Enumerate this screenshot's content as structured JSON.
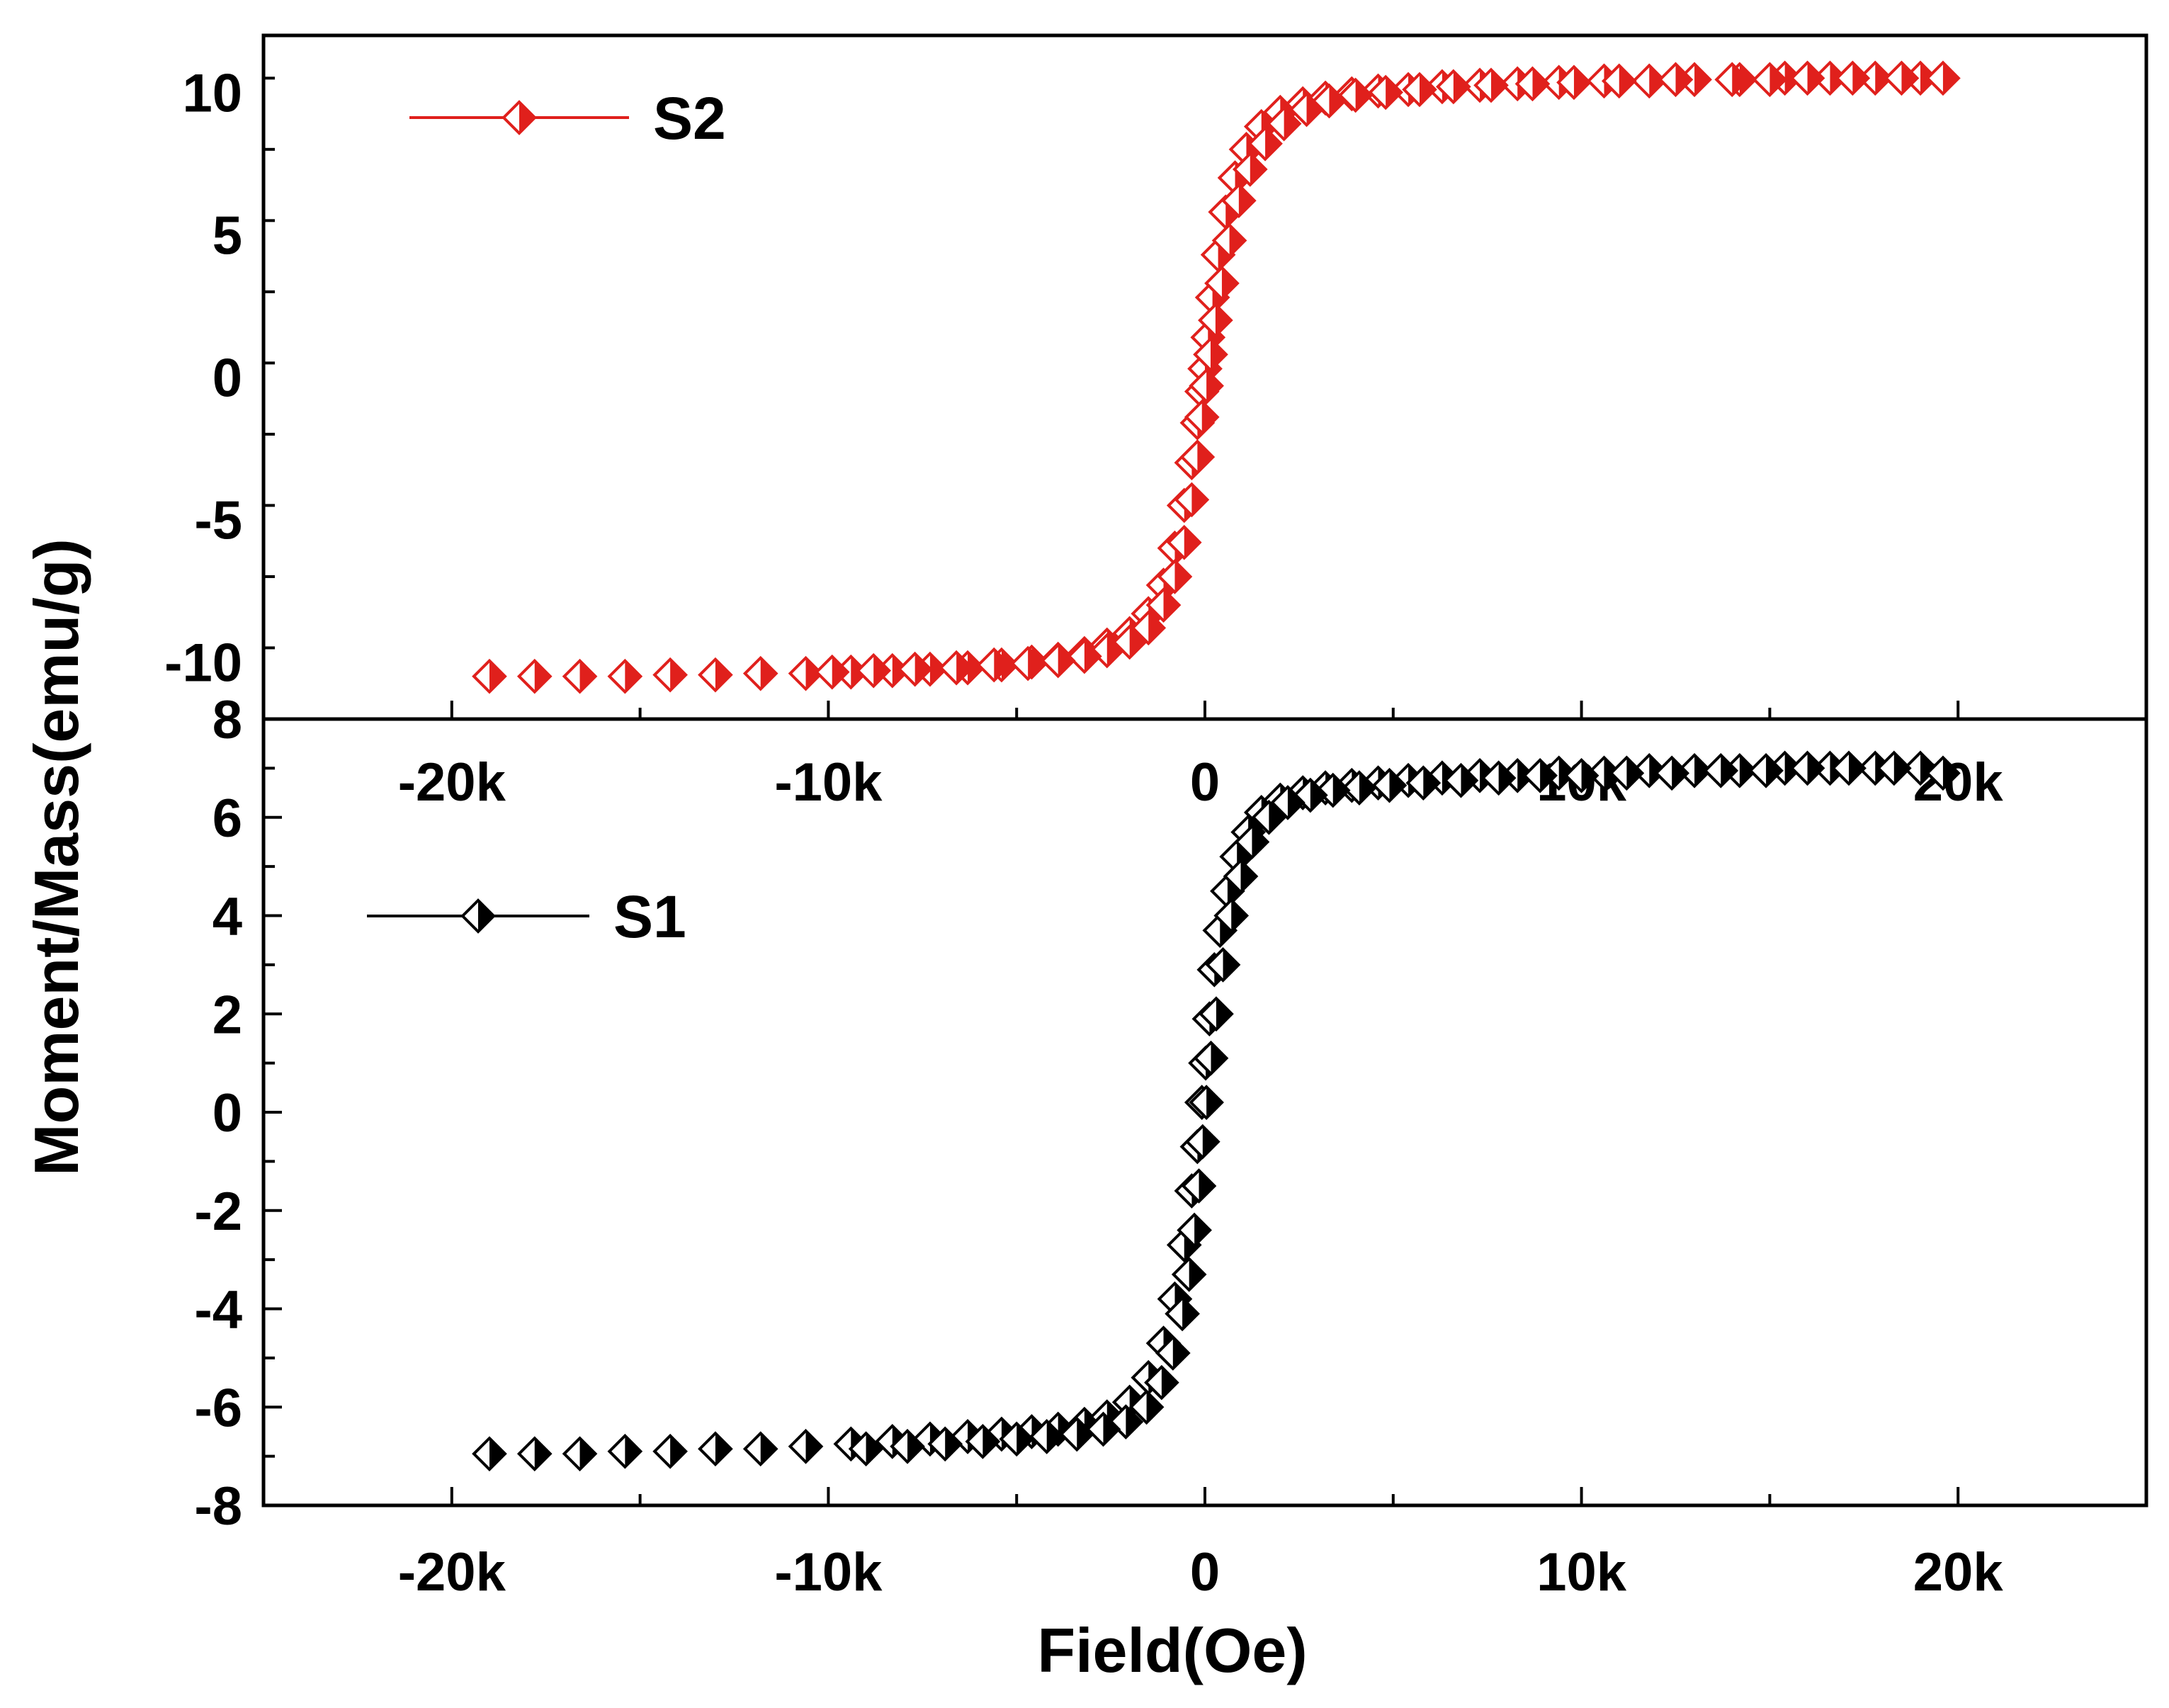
{
  "figure": {
    "ylabel": "Moment/Mass(emu/g)",
    "xlabel": "Field(Oe)"
  },
  "colors": {
    "S2": "#e0201c",
    "S1": "#000000"
  },
  "chart_data": [
    {
      "id": "top",
      "type": "scatter",
      "series_name": "S2",
      "legend": "S2",
      "xlim": [
        -25000,
        25000
      ],
      "ylim": [
        -12,
        12
      ],
      "x_ticks": [
        -20000,
        -10000,
        0,
        10000,
        20000
      ],
      "x_tick_labels": [
        "-20k",
        "-10k",
        "0",
        "10k",
        "20k"
      ],
      "y_ticks": [
        -10,
        -5,
        0,
        5,
        10
      ],
      "y_tick_labels": [
        "-10",
        "-5",
        "0",
        "5",
        "10"
      ],
      "points": [
        [
          -19000,
          -10.5
        ],
        [
          -17800,
          -10.5
        ],
        [
          -16600,
          -10.5
        ],
        [
          -15400,
          -10.5
        ],
        [
          -14200,
          -10.45
        ],
        [
          -13000,
          -10.45
        ],
        [
          -11800,
          -10.4
        ],
        [
          -10600,
          -10.4
        ],
        [
          -9400,
          -10.35
        ],
        [
          -8300,
          -10.3
        ],
        [
          -7300,
          -10.25
        ],
        [
          -6300,
          -10.2
        ],
        [
          -5400,
          -10.1
        ],
        [
          -4600,
          -10.0
        ],
        [
          -3900,
          -9.9
        ],
        [
          -3200,
          -9.7
        ],
        [
          -2600,
          -9.4
        ],
        [
          -2000,
          -9.0
        ],
        [
          -1500,
          -8.3
        ],
        [
          -1100,
          -7.3
        ],
        [
          -800,
          -6.0
        ],
        [
          -550,
          -4.5
        ],
        [
          -350,
          -3.0
        ],
        [
          -200,
          -1.6
        ],
        [
          -80,
          -0.5
        ],
        [
          0,
          0.3
        ],
        [
          80,
          1.4
        ],
        [
          200,
          2.8
        ],
        [
          350,
          4.3
        ],
        [
          550,
          5.8
        ],
        [
          800,
          7.0
        ],
        [
          1100,
          8.0
        ],
        [
          1500,
          8.8
        ],
        [
          2000,
          9.3
        ],
        [
          2600,
          9.6
        ],
        [
          3200,
          9.8
        ],
        [
          3900,
          9.95
        ],
        [
          4600,
          10.05
        ],
        [
          5400,
          10.1
        ],
        [
          6300,
          10.2
        ],
        [
          7300,
          10.25
        ],
        [
          8300,
          10.3
        ],
        [
          9400,
          10.35
        ],
        [
          10600,
          10.4
        ],
        [
          11800,
          10.4
        ],
        [
          13000,
          10.45
        ],
        [
          14200,
          10.45
        ],
        [
          15400,
          10.5
        ],
        [
          16600,
          10.5
        ],
        [
          17800,
          10.5
        ],
        [
          19000,
          10.5
        ],
        [
          19600,
          10.5
        ],
        [
          18500,
          10.5
        ],
        [
          17200,
          10.5
        ],
        [
          16000,
          10.5
        ],
        [
          15000,
          10.45
        ],
        [
          14000,
          10.45
        ],
        [
          12500,
          10.45
        ],
        [
          11000,
          10.4
        ],
        [
          9800,
          10.35
        ],
        [
          8700,
          10.3
        ],
        [
          7600,
          10.25
        ],
        [
          6600,
          10.2
        ],
        [
          5700,
          10.1
        ],
        [
          4800,
          10.0
        ],
        [
          4000,
          9.9
        ],
        [
          3300,
          9.7
        ],
        [
          2700,
          9.4
        ],
        [
          2100,
          8.9
        ],
        [
          1600,
          8.2
        ],
        [
          1200,
          7.3
        ],
        [
          900,
          6.2
        ],
        [
          650,
          4.8
        ],
        [
          450,
          3.3
        ],
        [
          280,
          2.0
        ],
        [
          150,
          0.8
        ],
        [
          40,
          -0.3
        ],
        [
          -80,
          -1.4
        ],
        [
          -200,
          -2.8
        ],
        [
          -350,
          -4.3
        ],
        [
          -550,
          -5.8
        ],
        [
          -800,
          -7.0
        ],
        [
          -1100,
          -8.0
        ],
        [
          -1500,
          -8.8
        ],
        [
          -2000,
          -9.3
        ],
        [
          -2600,
          -9.6
        ],
        [
          -3200,
          -9.8
        ],
        [
          -3900,
          -9.95
        ],
        [
          -4700,
          -10.05
        ],
        [
          -5600,
          -10.1
        ],
        [
          -6600,
          -10.2
        ],
        [
          -7700,
          -10.25
        ],
        [
          -8800,
          -10.3
        ],
        [
          -9900,
          -10.35
        ]
      ]
    },
    {
      "id": "bottom",
      "type": "scatter",
      "series_name": "S1",
      "legend": "S1",
      "xlim": [
        -25000,
        25000
      ],
      "ylim": [
        -8,
        8
      ],
      "x_ticks": [
        -20000,
        -10000,
        0,
        10000,
        20000
      ],
      "x_tick_labels": [
        "-20k",
        "-10k",
        "0",
        "10k",
        "20k"
      ],
      "y_ticks": [
        -8,
        -6,
        -4,
        -2,
        0,
        2,
        4,
        6,
        8
      ],
      "y_tick_labels": [
        "-8",
        "-6",
        "-4",
        "-2",
        "0",
        "2",
        "4",
        "6",
        "8"
      ],
      "points": [
        [
          -19000,
          -6.95
        ],
        [
          -17800,
          -6.95
        ],
        [
          -16600,
          -6.95
        ],
        [
          -15400,
          -6.9
        ],
        [
          -14200,
          -6.9
        ],
        [
          -13000,
          -6.85
        ],
        [
          -11800,
          -6.85
        ],
        [
          -10600,
          -6.8
        ],
        [
          -9400,
          -6.75
        ],
        [
          -8300,
          -6.7
        ],
        [
          -7300,
          -6.65
        ],
        [
          -6300,
          -6.6
        ],
        [
          -5400,
          -6.55
        ],
        [
          -4600,
          -6.5
        ],
        [
          -3900,
          -6.45
        ],
        [
          -3200,
          -6.35
        ],
        [
          -2600,
          -6.2
        ],
        [
          -2000,
          -5.9
        ],
        [
          -1500,
          -5.4
        ],
        [
          -1100,
          -4.7
        ],
        [
          -800,
          -3.8
        ],
        [
          -550,
          -2.7
        ],
        [
          -350,
          -1.6
        ],
        [
          -200,
          -0.7
        ],
        [
          -80,
          0.2
        ],
        [
          20,
          1.0
        ],
        [
          120,
          1.9
        ],
        [
          250,
          2.9
        ],
        [
          400,
          3.7
        ],
        [
          600,
          4.5
        ],
        [
          850,
          5.2
        ],
        [
          1150,
          5.7
        ],
        [
          1500,
          6.1
        ],
        [
          2000,
          6.35
        ],
        [
          2600,
          6.5
        ],
        [
          3200,
          6.6
        ],
        [
          3900,
          6.65
        ],
        [
          4600,
          6.7
        ],
        [
          5400,
          6.75
        ],
        [
          6300,
          6.8
        ],
        [
          7300,
          6.85
        ],
        [
          8300,
          6.85
        ],
        [
          9400,
          6.9
        ],
        [
          10600,
          6.9
        ],
        [
          11800,
          6.95
        ],
        [
          13000,
          6.95
        ],
        [
          14200,
          6.95
        ],
        [
          15400,
          7.0
        ],
        [
          16600,
          7.0
        ],
        [
          17800,
          7.0
        ],
        [
          19000,
          7.0
        ],
        [
          19600,
          6.9
        ],
        [
          18300,
          7.0
        ],
        [
          17100,
          7.0
        ],
        [
          16000,
          7.0
        ],
        [
          14900,
          6.95
        ],
        [
          13700,
          6.95
        ],
        [
          12400,
          6.9
        ],
        [
          11200,
          6.9
        ],
        [
          10000,
          6.85
        ],
        [
          8900,
          6.85
        ],
        [
          7800,
          6.8
        ],
        [
          6800,
          6.75
        ],
        [
          5800,
          6.7
        ],
        [
          4900,
          6.65
        ],
        [
          4100,
          6.6
        ],
        [
          3400,
          6.55
        ],
        [
          2800,
          6.45
        ],
        [
          2200,
          6.3
        ],
        [
          1700,
          6.0
        ],
        [
          1250,
          5.5
        ],
        [
          950,
          4.8
        ],
        [
          700,
          4.0
        ],
        [
          480,
          3.0
        ],
        [
          300,
          2.0
        ],
        [
          160,
          1.1
        ],
        [
          40,
          0.2
        ],
        [
          -60,
          -0.6
        ],
        [
          -160,
          -1.5
        ],
        [
          -280,
          -2.4
        ],
        [
          -420,
          -3.3
        ],
        [
          -600,
          -4.1
        ],
        [
          -850,
          -4.9
        ],
        [
          -1150,
          -5.5
        ],
        [
          -1550,
          -6.0
        ],
        [
          -2100,
          -6.3
        ],
        [
          -2700,
          -6.45
        ],
        [
          -3400,
          -6.55
        ],
        [
          -4200,
          -6.6
        ],
        [
          -5000,
          -6.65
        ],
        [
          -5900,
          -6.7
        ],
        [
          -6900,
          -6.75
        ],
        [
          -7900,
          -6.8
        ],
        [
          -9000,
          -6.85
        ]
      ]
    }
  ]
}
